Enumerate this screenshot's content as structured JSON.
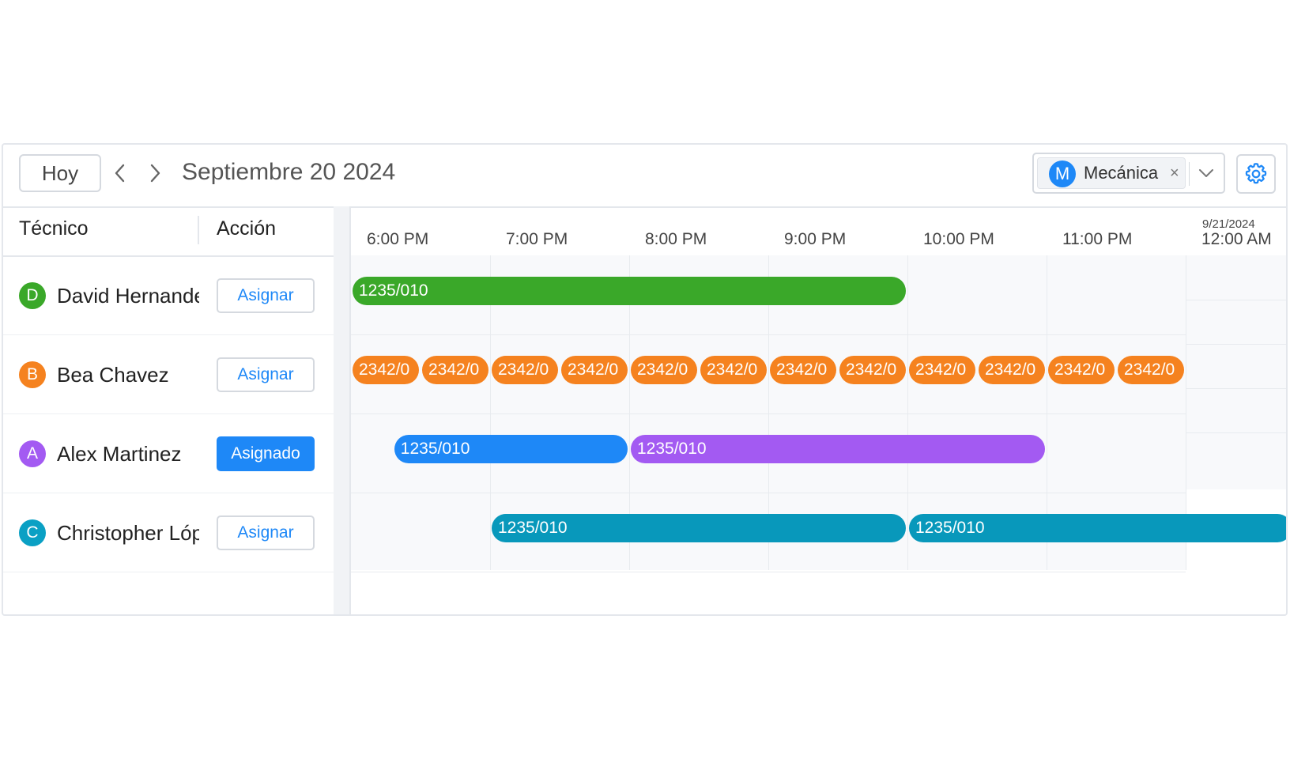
{
  "toolbar": {
    "today_label": "Hoy",
    "date_title": "Septiembre 20 2024",
    "filter": {
      "avatar_letter": "M",
      "tag_label": "Mecánica",
      "close_glyph": "×"
    }
  },
  "columns": {
    "technician": "Técnico",
    "action": "Acción"
  },
  "timeline": {
    "hours": [
      "6:00 PM",
      "7:00 PM",
      "8:00 PM",
      "9:00 PM",
      "10:00 PM",
      "11:00 PM",
      "12:00 AM"
    ],
    "next_date": "9/21/2024"
  },
  "technicians": [
    {
      "initial": "D",
      "name": "David Hernande",
      "action": "Asignar",
      "assigned": false,
      "color": "#3aa829"
    },
    {
      "initial": "B",
      "name": "Bea Chavez",
      "action": "Asignar",
      "assigned": false,
      "color": "#f5821f"
    },
    {
      "initial": "A",
      "name": "Alex Martinez",
      "action": "Asignado",
      "assigned": true,
      "color": "#a35af2"
    },
    {
      "initial": "C",
      "name": "Christopher Lóp",
      "action": "Asignar",
      "assigned": false,
      "color": "#0aa0c4"
    }
  ],
  "events": [
    {
      "row": 0,
      "label": "1235/010",
      "start": 0,
      "end": 4.0,
      "color": "#3aa829"
    },
    {
      "row": 1,
      "label": "2342/0",
      "start": 0.0,
      "end": 0.5,
      "color": "#f5821f"
    },
    {
      "row": 1,
      "label": "2342/0",
      "start": 0.5,
      "end": 1.0,
      "color": "#f5821f"
    },
    {
      "row": 1,
      "label": "2342/0",
      "start": 1.0,
      "end": 1.5,
      "color": "#f5821f"
    },
    {
      "row": 1,
      "label": "2342/0",
      "start": 1.5,
      "end": 2.0,
      "color": "#f5821f"
    },
    {
      "row": 1,
      "label": "2342/0",
      "start": 2.0,
      "end": 2.5,
      "color": "#f5821f"
    },
    {
      "row": 1,
      "label": "2342/0",
      "start": 2.5,
      "end": 3.0,
      "color": "#f5821f"
    },
    {
      "row": 1,
      "label": "2342/0",
      "start": 3.0,
      "end": 3.5,
      "color": "#f5821f"
    },
    {
      "row": 1,
      "label": "2342/0",
      "start": 3.5,
      "end": 4.0,
      "color": "#f5821f"
    },
    {
      "row": 1,
      "label": "2342/0",
      "start": 4.0,
      "end": 4.5,
      "color": "#f5821f"
    },
    {
      "row": 1,
      "label": "2342/0",
      "start": 4.5,
      "end": 5.0,
      "color": "#f5821f"
    },
    {
      "row": 1,
      "label": "2342/0",
      "start": 5.0,
      "end": 5.5,
      "color": "#f5821f"
    },
    {
      "row": 1,
      "label": "2342/0",
      "start": 5.5,
      "end": 6.0,
      "color": "#f5821f"
    },
    {
      "row": 2,
      "label": "1235/010",
      "start": 0.3,
      "end": 2.0,
      "color": "#1e88f7"
    },
    {
      "row": 2,
      "label": "1235/010",
      "start": 2.0,
      "end": 5.0,
      "color": "#a35af2"
    },
    {
      "row": 3,
      "label": "1235/010",
      "start": 1.0,
      "end": 4.0,
      "color": "#0898bb"
    },
    {
      "row": 3,
      "label": "1235/010",
      "start": 4.0,
      "end": 7.0,
      "color": "#0898bb"
    }
  ]
}
